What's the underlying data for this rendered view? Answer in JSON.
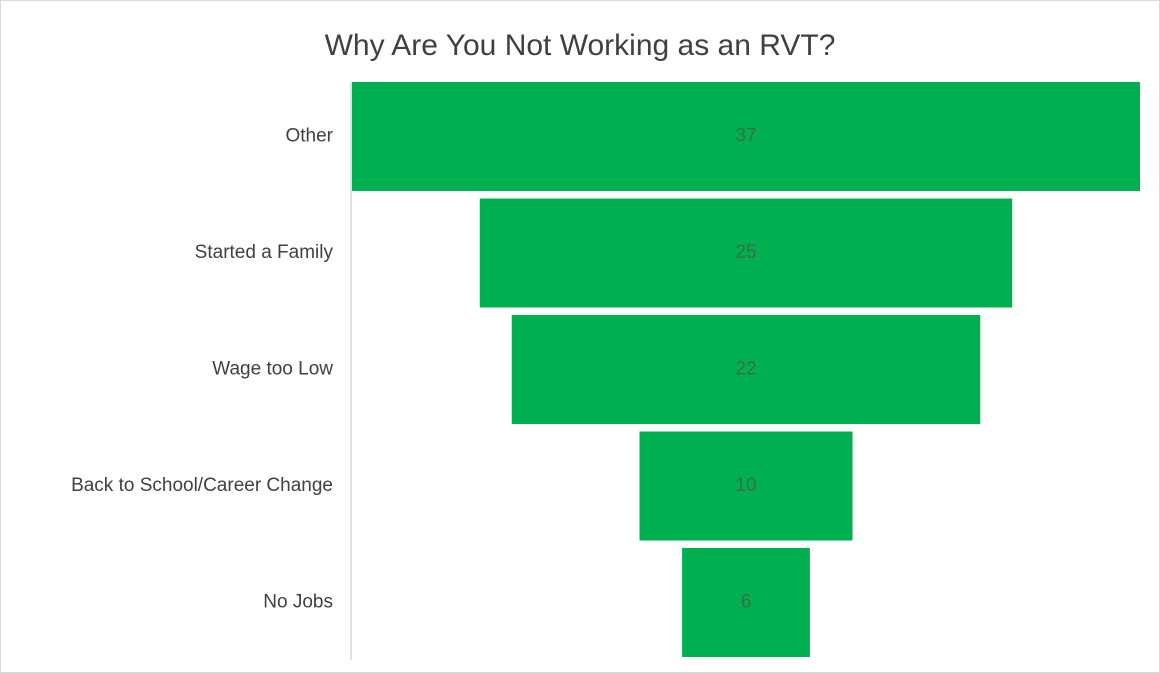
{
  "chart_data": {
    "type": "funnel",
    "title": "Why Are You Not Working as an RVT?",
    "categories": [
      "Other",
      "Started a Family",
      "Wage too Low",
      "Back to School/Career Change",
      "No Jobs"
    ],
    "values": [
      37,
      25,
      22,
      10,
      6
    ],
    "color": "#00b050"
  }
}
